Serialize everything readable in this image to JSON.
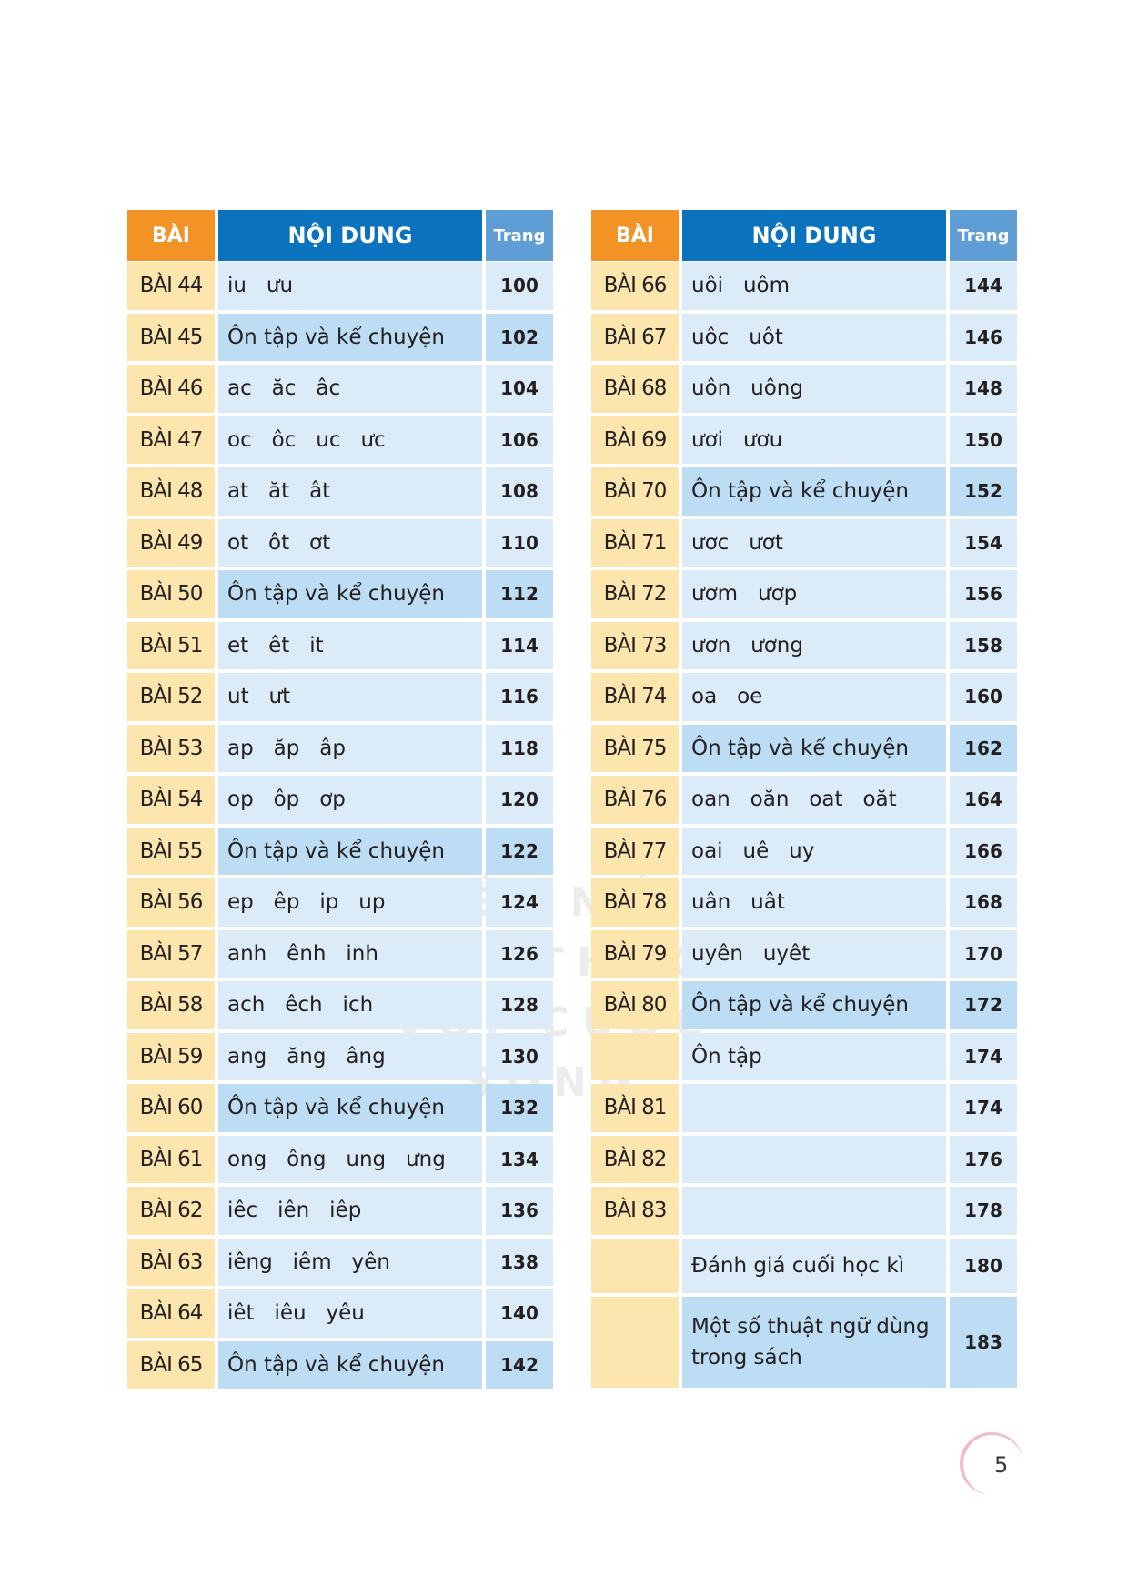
{
  "watermark": "KẾT NỐI TRI THỨC VỚI CUỘC SỐNG",
  "header": {
    "bai": "BÀI",
    "noi_dung": "NỘI DUNG",
    "trang": "Trang"
  },
  "left": [
    {
      "bai": "BÀI 44",
      "content": "iu   ưu",
      "page": "100"
    },
    {
      "bai": "BÀI 45",
      "content": "Ôn tập và kể chuyện",
      "page": "102",
      "hl": true
    },
    {
      "bai": "BÀI 46",
      "content": "ac   ăc   âc",
      "page": "104"
    },
    {
      "bai": "BÀI 47",
      "content": "oc   ôc   uc   ưc",
      "page": "106"
    },
    {
      "bai": "BÀI 48",
      "content": "at   ăt   ât",
      "page": "108"
    },
    {
      "bai": "BÀI 49",
      "content": "ot   ôt   ơt",
      "page": "110"
    },
    {
      "bai": "BÀI 50",
      "content": "Ôn tập và kể chuyện",
      "page": "112",
      "hl": true
    },
    {
      "bai": "BÀI 51",
      "content": "et   êt   it",
      "page": "114"
    },
    {
      "bai": "BÀI 52",
      "content": "ut   ưt",
      "page": "116"
    },
    {
      "bai": "BÀI 53",
      "content": "ap   ăp   âp",
      "page": "118"
    },
    {
      "bai": "BÀI 54",
      "content": "op   ôp   ơp",
      "page": "120"
    },
    {
      "bai": "BÀI 55",
      "content": "Ôn tập và kể chuyện",
      "page": "122",
      "hl": true
    },
    {
      "bai": "BÀI 56",
      "content": "ep   êp   ip   up",
      "page": "124"
    },
    {
      "bai": "BÀI 57",
      "content": "anh   ênh   inh",
      "page": "126"
    },
    {
      "bai": "BÀI 58",
      "content": "ach   êch   ich",
      "page": "128"
    },
    {
      "bai": "BÀI 59",
      "content": "ang   ăng   âng",
      "page": "130"
    },
    {
      "bai": "BÀI 60",
      "content": "Ôn tập và kể chuyện",
      "page": "132",
      "hl": true
    },
    {
      "bai": "BÀI 61",
      "content": "ong   ông   ung   ưng",
      "page": "134"
    },
    {
      "bai": "BÀI 62",
      "content": "iêc   iên   iêp",
      "page": "136"
    },
    {
      "bai": "BÀI 63",
      "content": "iêng   iêm   yên",
      "page": "138"
    },
    {
      "bai": "BÀI 64",
      "content": "iêt   iêu   yêu",
      "page": "140"
    },
    {
      "bai": "BÀI 65",
      "content": "Ôn tập và kể chuyện",
      "page": "142",
      "hl": true
    }
  ],
  "right": [
    {
      "bai": "BÀI 66",
      "content": "uôi   uôm",
      "page": "144"
    },
    {
      "bai": "BÀI 67",
      "content": "uôc   uôt",
      "page": "146"
    },
    {
      "bai": "BÀI 68",
      "content": "uôn   uông",
      "page": "148"
    },
    {
      "bai": "BÀI 69",
      "content": "ươi   ươu",
      "page": "150"
    },
    {
      "bai": "BÀI 70",
      "content": "Ôn tập và kể chuyện",
      "page": "152",
      "hl": true
    },
    {
      "bai": "BÀI 71",
      "content": "ươc   ươt",
      "page": "154"
    },
    {
      "bai": "BÀI 72",
      "content": "ươm   ươp",
      "page": "156"
    },
    {
      "bai": "BÀI 73",
      "content": "ươn   ương",
      "page": "158"
    },
    {
      "bai": "BÀI 74",
      "content": "oa   oe",
      "page": "160"
    },
    {
      "bai": "BÀI 75",
      "content": "Ôn tập và kể chuyện",
      "page": "162",
      "hl": true
    },
    {
      "bai": "BÀI 76",
      "content": "oan   oăn   oat   oăt",
      "page": "164"
    },
    {
      "bai": "BÀI 77",
      "content": "oai   uê   uy",
      "page": "166"
    },
    {
      "bai": "BÀI 78",
      "content": "uân   uât",
      "page": "168"
    },
    {
      "bai": "BÀI 79",
      "content": "uyên   uyêt",
      "page": "170"
    },
    {
      "bai": "BÀI 80",
      "content": "Ôn tập và kể chuyện",
      "page": "172",
      "hl": true
    },
    {
      "bai": "",
      "content": "Ôn tập",
      "page": "174"
    },
    {
      "bai": "BÀI 81",
      "content": "",
      "page": "174"
    },
    {
      "bai": "BÀI 82",
      "content": "",
      "page": "176"
    },
    {
      "bai": "BÀI 83",
      "content": "",
      "page": "178"
    },
    {
      "bai": "",
      "content": "Đánh giá cuối học kì",
      "page": "180",
      "size": "tall"
    },
    {
      "bai": "",
      "content": "Một số thuật ngữ dùng trong sách",
      "page": "183",
      "hl": true,
      "size": "xtall"
    }
  ],
  "page_number": "5"
}
